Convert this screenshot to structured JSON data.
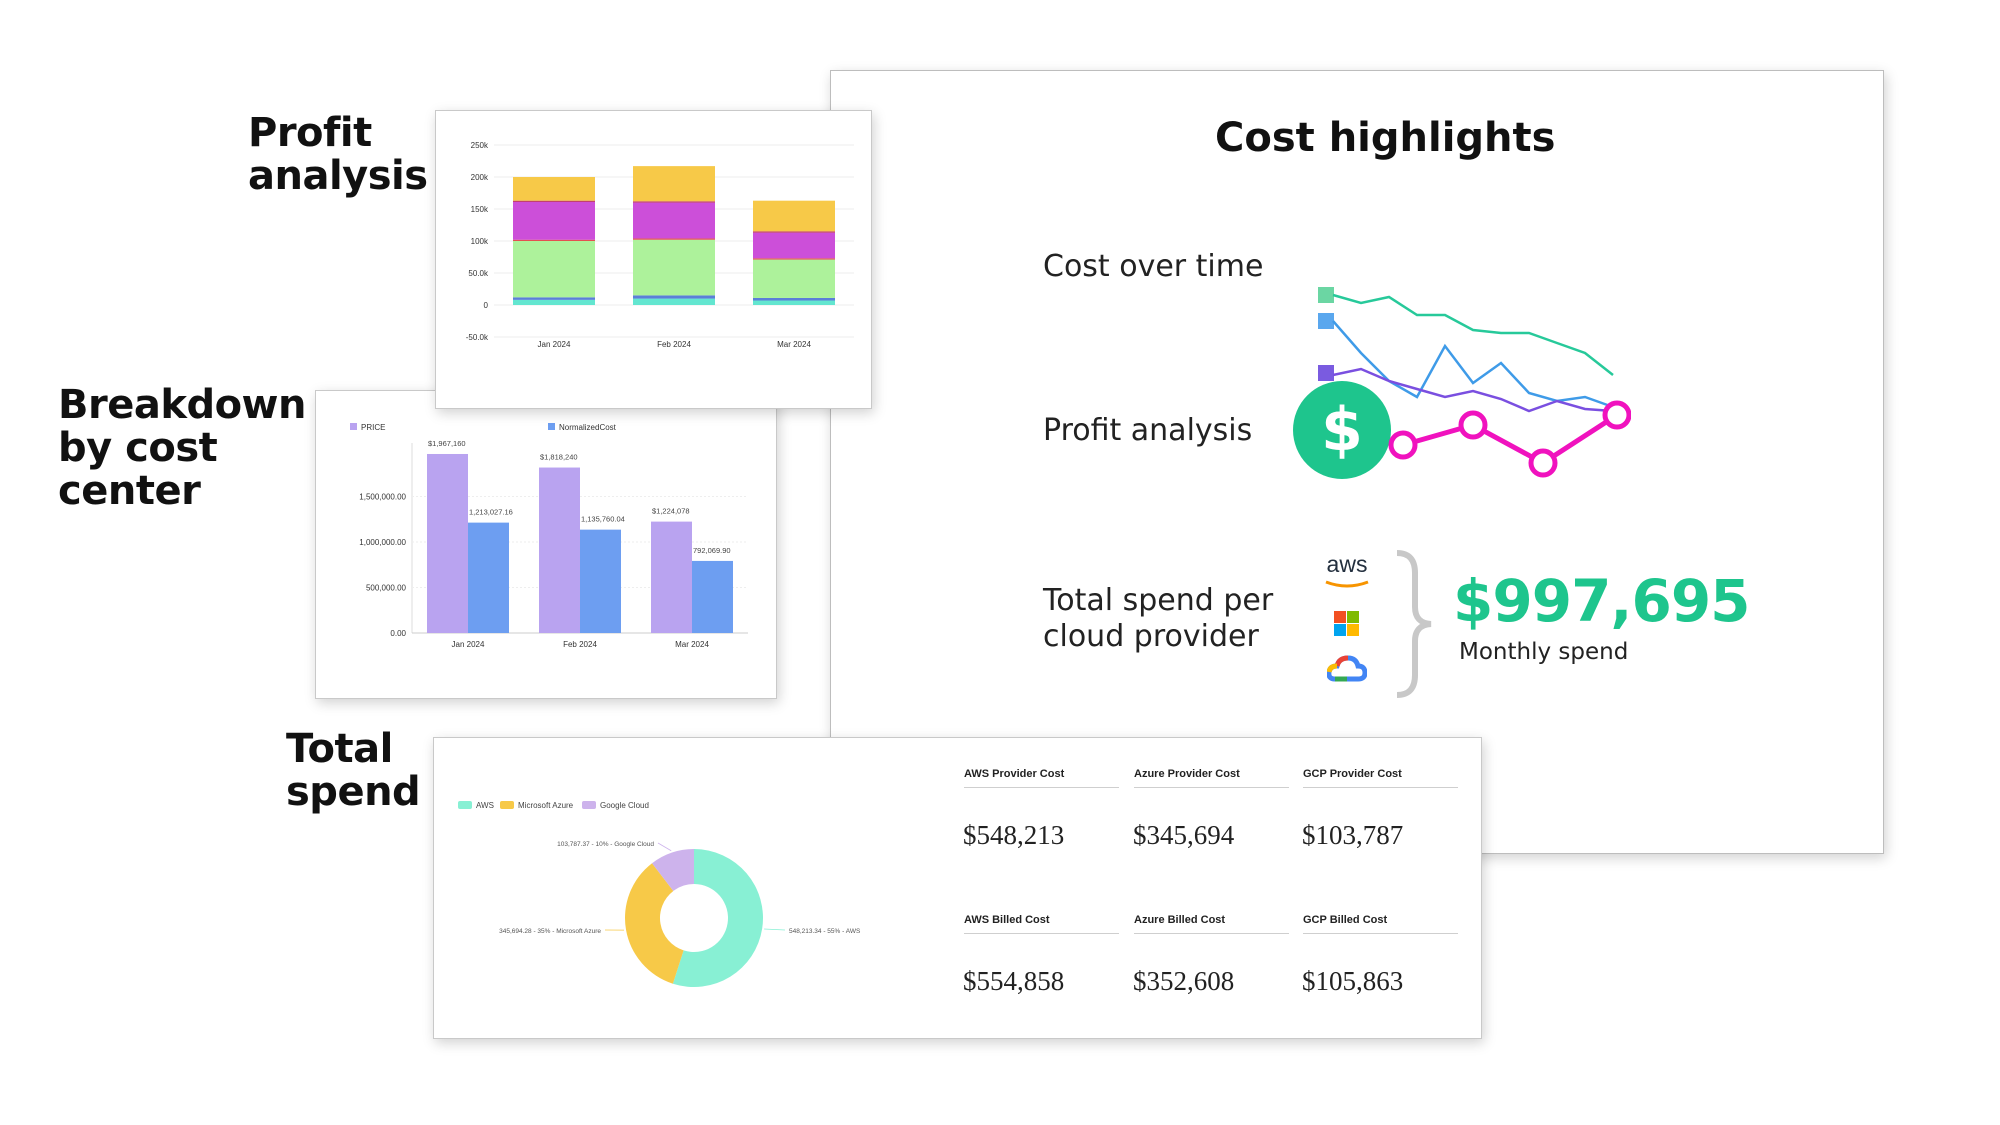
{
  "headings": {
    "profit": "Profit\nanalysis",
    "breakdown": "Breakdown\nby cost\ncenter",
    "total": "Total\nspend"
  },
  "highlights": {
    "title": "Cost highlights",
    "cost_over_time_label": "Cost over time",
    "profit_label": "Profit analysis",
    "dollar_symbol": "$",
    "spend_label": "Total spend per\ncloud provider",
    "aws_logo_text": "aws",
    "total_spend": "$997,695",
    "total_spend_sub": "Monthly spend",
    "colors": {
      "green": "#1ec58d",
      "magenta": "#f012be",
      "blue": "#3f9be8",
      "purple": "#7a5be0",
      "teal": "#27c99a"
    }
  },
  "chart_data": [
    {
      "type": "bar",
      "stacked": true,
      "categories": [
        "Jan 2024",
        "Feb 2024",
        "Mar 2024"
      ],
      "yticks": [
        "250k",
        "200k",
        "150k",
        "100k",
        "50.0k",
        "0",
        "-50.0k"
      ],
      "ylim": [
        -50000,
        250000
      ],
      "series": [
        {
          "values": [
            8000,
            10000,
            7000
          ],
          "color": "#63e6d0"
        },
        {
          "values": [
            4000,
            5000,
            4000
          ],
          "color": "#5b7fd8"
        },
        {
          "values": [
            88000,
            87000,
            60000
          ],
          "color": "#adf29b"
        },
        {
          "values": [
            2000,
            2000,
            2000
          ],
          "color": "#e45050"
        },
        {
          "values": [
            59000,
            56000,
            40000
          ],
          "color": "#cc4fd9"
        },
        {
          "values": [
            2000,
            2000,
            2000
          ],
          "color": "#c03a6a"
        },
        {
          "values": [
            37000,
            55000,
            48000
          ],
          "color": "#f7c948"
        }
      ]
    },
    {
      "type": "bar",
      "categories": [
        "Jan 2024",
        "Feb 2024",
        "Mar 2024"
      ],
      "yticks": [
        "1,500,000.00",
        "1,000,000.00",
        "500,000.00",
        "0.00"
      ],
      "ylim": [
        0,
        2000000
      ],
      "series": [
        {
          "name": "PRICE",
          "values": [
            1967160,
            1818240,
            1224078
          ],
          "labels": [
            "$1,967,160",
            "$1,818,240",
            "$1,224,078"
          ],
          "color": "#b9a3f0"
        },
        {
          "name": "NormalizedCost",
          "values": [
            1213027.16,
            1135760.04,
            792069.9
          ],
          "labels": [
            "1,213,027.16",
            "1,135,760.04",
            "792,069.90"
          ],
          "color": "#6d9ef1"
        }
      ]
    },
    {
      "type": "pie",
      "donut": true,
      "legend": [
        "AWS",
        "Microsoft Azure",
        "Google Cloud"
      ],
      "values": [
        548213.34,
        345694.28,
        103787.37
      ],
      "percents": [
        55,
        35,
        10
      ],
      "colors": [
        "#88f0d4",
        "#f7c948",
        "#cdb3ec"
      ],
      "slice_labels": [
        "548,213.34 - 55% - AWS",
        "345,694.28 - 35% - Microsoft Azure",
        "103,787.37 - 10% - Google Cloud"
      ]
    }
  ],
  "metrics": [
    {
      "label": "AWS Provider Cost",
      "value": "$548,213"
    },
    {
      "label": "Azure Provider Cost",
      "value": "$345,694"
    },
    {
      "label": "GCP Provider Cost",
      "value": "$103,787"
    },
    {
      "label": "AWS Billed Cost",
      "value": "$554,858"
    },
    {
      "label": "Azure Billed Cost",
      "value": "$352,608"
    },
    {
      "label": "GCP Billed Cost",
      "value": "$105,863"
    }
  ]
}
